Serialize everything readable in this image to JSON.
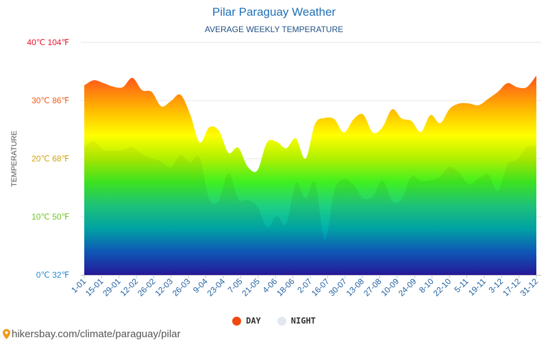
{
  "header": {
    "title": "Pilar Paraguay Weather",
    "subtitle": "AVERAGE WEEKLY TEMPERATURE"
  },
  "legend": {
    "day_label": "DAY",
    "night_label": "NIGHT",
    "day_color": "#f0490f",
    "night_color": "#e3e8f0"
  },
  "footer": {
    "link_text": "hikersbay.com/climate/paraguay/pilar",
    "pin_color": "#f09a1a"
  },
  "chart_data": {
    "type": "area",
    "title": "Pilar Paraguay Weather",
    "subtitle": "AVERAGE WEEKLY TEMPERATURE",
    "ylabel": "TEMPERATURE",
    "ylim": [
      0,
      40
    ],
    "y_ticks": [
      {
        "value": 0,
        "label": "0℃ 32℉",
        "color": "#1e88c8"
      },
      {
        "value": 10,
        "label": "10℃ 50℉",
        "color": "#6dc51e"
      },
      {
        "value": 20,
        "label": "20℃ 68℉",
        "color": "#d4a20a"
      },
      {
        "value": 30,
        "label": "30℃ 86℉",
        "color": "#f05a14"
      },
      {
        "value": 40,
        "label": "40℃ 104℉",
        "color": "#e8112d"
      }
    ],
    "x_tick_labels": [
      "1-01",
      "15-01",
      "29-01",
      "12-02",
      "26-02",
      "12-03",
      "26-03",
      "9-04",
      "23-04",
      "7-05",
      "21-05",
      "4-06",
      "18-06",
      "2-07",
      "16-07",
      "30-07",
      "13-08",
      "27-08",
      "10-09",
      "24-09",
      "8-10",
      "22-10",
      "5-11",
      "19-11",
      "3-12",
      "17-12",
      "31-12"
    ],
    "legend_position": "bottom",
    "grid": true,
    "series": [
      {
        "name": "DAY",
        "values": [
          32.6,
          33.5,
          33.0,
          32.4,
          32.3,
          33.9,
          31.8,
          31.5,
          29.0,
          29.9,
          31.0,
          27.7,
          22.8,
          25.4,
          24.8,
          21.0,
          21.9,
          18.6,
          18.0,
          22.8,
          22.9,
          21.8,
          23.5,
          20.0,
          26.0,
          27.0,
          26.8,
          24.5,
          26.8,
          27.6,
          24.5,
          25.4,
          28.5,
          26.9,
          26.5,
          24.6,
          27.5,
          26.1,
          28.6,
          29.5,
          29.5,
          29.2,
          30.3,
          31.5,
          33.0,
          32.3,
          32.3,
          34.3
        ]
      },
      {
        "name": "NIGHT",
        "values": [
          22.0,
          23.0,
          21.5,
          21.4,
          21.5,
          22.0,
          20.8,
          20.1,
          19.5,
          18.5,
          20.6,
          19.4,
          20.2,
          13.0,
          12.9,
          17.5,
          13.1,
          12.9,
          11.8,
          8.2,
          10.1,
          8.8,
          15.8,
          13.2,
          15.9,
          6.0,
          14.5,
          16.5,
          15.5,
          13.2,
          13.5,
          16.3,
          12.8,
          13.0,
          16.9,
          16.2,
          16.3,
          16.9,
          18.6,
          17.5,
          15.6,
          16.6,
          17.3,
          14.5,
          19.0,
          19.8,
          22.0,
          22.2
        ]
      }
    ]
  }
}
